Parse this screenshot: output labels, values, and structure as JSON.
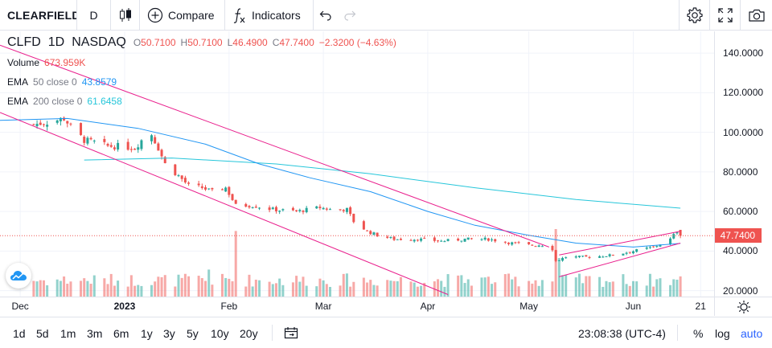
{
  "toolbar": {
    "symbol": "CLEARFIELD",
    "interval": "D",
    "compare_label": "Compare",
    "indicators_label": "Indicators"
  },
  "legend": {
    "symbol": "CLFD",
    "interval": "1D",
    "exchange": "NASDAQ",
    "open_label": "O",
    "open": "50.7100",
    "high_label": "H",
    "high": "50.7100",
    "low_label": "L",
    "low": "46.4900",
    "close_label": "C",
    "close": "47.7400",
    "change": "−2.3200 (−4.63%)",
    "volume_label": "Volume",
    "volume": "673.959K",
    "ema50_label": "EMA",
    "ema50_params": "50 close 0",
    "ema50_value": "43.8579",
    "ema200_label": "EMA",
    "ema200_params": "200 close 0",
    "ema200_value": "61.6458"
  },
  "price_scale": {
    "labels": [
      "140.0000",
      "120.0000",
      "100.0000",
      "80.0000",
      "60.0000",
      "40.0000",
      "20.0000"
    ],
    "last_price": "47.7400"
  },
  "time_scale": {
    "labels": [
      "Dec",
      "2023",
      "Feb",
      "Mar",
      "Apr",
      "May",
      "Jun",
      "21"
    ]
  },
  "bottom": {
    "ranges": [
      "1d",
      "5d",
      "1m",
      "3m",
      "6m",
      "1y",
      "3y",
      "5y",
      "10y",
      "20y"
    ],
    "clock": "23:08:38 (UTC-4)",
    "percent_label": "%",
    "log_label": "log",
    "auto_label": "auto"
  },
  "colors": {
    "up": "#26a69a",
    "down": "#ef5350",
    "ema50": "#2196f3",
    "ema200": "#26c6da",
    "trend": "#e91e8c",
    "accent": "#2962ff"
  },
  "chart_data": {
    "type": "candlestick",
    "y_range": [
      17,
      151
    ],
    "price_ticks": [
      140,
      120,
      100,
      80,
      60,
      40,
      20
    ],
    "date_range": [
      "2022-11-25",
      "2023-06-25"
    ],
    "time_ticks": [
      "2022-12-01",
      "2023-01-01",
      "2023-02-01",
      "2023-03-01",
      "2023-04-01",
      "2023-05-01",
      "2023-06-01",
      "2023-06-21"
    ],
    "last_price": 47.74,
    "close_path": [
      [
        "2022-12-05",
        104
      ],
      [
        "2022-12-09",
        105
      ],
      [
        "2022-12-14",
        107
      ],
      [
        "2022-12-16",
        103
      ],
      [
        "2022-12-20",
        96
      ],
      [
        "2022-12-23",
        95
      ],
      [
        "2022-12-27",
        93
      ],
      [
        "2022-12-30",
        93
      ],
      [
        "2023-01-04",
        92
      ],
      [
        "2023-01-06",
        96
      ],
      [
        "2023-01-09",
        99
      ],
      [
        "2023-01-11",
        92
      ],
      [
        "2023-01-13",
        84
      ],
      [
        "2023-01-17",
        78
      ],
      [
        "2023-01-20",
        73
      ],
      [
        "2023-01-24",
        72
      ],
      [
        "2023-01-27",
        70
      ],
      [
        "2023-01-31",
        72
      ],
      [
        "2023-02-03",
        63
      ],
      [
        "2023-02-08",
        63
      ],
      [
        "2023-02-14",
        61
      ],
      [
        "2023-02-21",
        60
      ],
      [
        "2023-02-28",
        62
      ],
      [
        "2023-03-03",
        61
      ],
      [
        "2023-03-08",
        61
      ],
      [
        "2023-03-10",
        55
      ],
      [
        "2023-03-14",
        50
      ],
      [
        "2023-03-17",
        48
      ],
      [
        "2023-03-22",
        46
      ],
      [
        "2023-03-29",
        46
      ],
      [
        "2023-04-05",
        45
      ],
      [
        "2023-04-12",
        46
      ],
      [
        "2023-04-19",
        46
      ],
      [
        "2023-04-26",
        44
      ],
      [
        "2023-05-01",
        43
      ],
      [
        "2023-05-05",
        43
      ],
      [
        "2023-05-08",
        41
      ],
      [
        "2023-05-09",
        35
      ],
      [
        "2023-05-12",
        37
      ],
      [
        "2023-05-19",
        37
      ],
      [
        "2023-05-26",
        38
      ],
      [
        "2023-06-01",
        40
      ],
      [
        "2023-06-07",
        42
      ],
      [
        "2023-06-12",
        46
      ],
      [
        "2023-06-14",
        50
      ],
      [
        "2023-06-15",
        47.74
      ]
    ],
    "ema50": [
      [
        "2022-11-25",
        106
      ],
      [
        "2022-12-15",
        107
      ],
      [
        "2023-01-05",
        102
      ],
      [
        "2023-01-25",
        94
      ],
      [
        "2023-02-10",
        84
      ],
      [
        "2023-02-25",
        77
      ],
      [
        "2023-03-15",
        70
      ],
      [
        "2023-04-01",
        60
      ],
      [
        "2023-04-15",
        53
      ],
      [
        "2023-05-01",
        48
      ],
      [
        "2023-05-15",
        44
      ],
      [
        "2023-06-01",
        42
      ],
      [
        "2023-06-15",
        43.86
      ]
    ],
    "ema200": [
      [
        "2022-12-20",
        86
      ],
      [
        "2023-01-15",
        87
      ],
      [
        "2023-02-15",
        84
      ],
      [
        "2023-03-15",
        79
      ],
      [
        "2023-04-15",
        72
      ],
      [
        "2023-05-15",
        66
      ],
      [
        "2023-06-15",
        61.65
      ]
    ],
    "trend_lines": [
      [
        [
          "2022-11-25",
          144
        ],
        [
          "2023-05-07",
          42
        ]
      ],
      [
        [
          "2022-11-25",
          110
        ],
        [
          "2023-04-07",
          18
        ]
      ],
      [
        [
          "2023-05-10",
          38
        ],
        [
          "2023-06-15",
          50
        ]
      ],
      [
        [
          "2023-05-10",
          27
        ],
        [
          "2023-06-15",
          44
        ]
      ]
    ]
  }
}
